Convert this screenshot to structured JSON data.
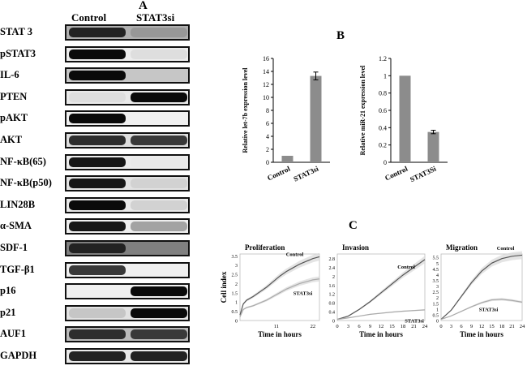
{
  "panel_A": {
    "letter": "A",
    "columns": [
      "Control",
      "STAT3si"
    ],
    "blots": [
      {
        "label": "STAT 3",
        "control": 0.9,
        "stat3si": 0.4,
        "bg": 0.3
      },
      {
        "label": "pSTAT3",
        "control": 1.0,
        "stat3si": 0.1,
        "bg": 0.04
      },
      {
        "label": "IL-6",
        "control": 1.0,
        "stat3si": 0.1,
        "bg": 0.2
      },
      {
        "label": "PTEN",
        "control": 0.1,
        "stat3si": 1.0,
        "bg": 0.05
      },
      {
        "label": "pAKT",
        "control": 1.0,
        "stat3si": 0.0,
        "bg": 0.02
      },
      {
        "label": "AKT",
        "control": 0.85,
        "stat3si": 0.8,
        "bg": 0.1
      },
      {
        "label": "NF-κB(65)",
        "control": 0.95,
        "stat3si": 0.05,
        "bg": 0.04
      },
      {
        "label": "NF-κB(p50)",
        "control": 0.95,
        "stat3si": 0.15,
        "bg": 0.08
      },
      {
        "label": "LIN28B",
        "control": 1.0,
        "stat3si": 0.15,
        "bg": 0.05
      },
      {
        "label": "α-SMA",
        "control": 0.95,
        "stat3si": 0.35,
        "bg": 0.03
      },
      {
        "label": "SDF-1",
        "control": 0.9,
        "stat3si": 0.1,
        "bg": 0.5
      },
      {
        "label": "TGF-β1",
        "control": 0.8,
        "stat3si": 0.0,
        "bg": 0.02
      },
      {
        "label": "p16",
        "control": 0.0,
        "stat3si": 1.0,
        "bg": 0.02
      },
      {
        "label": "p21",
        "control": 0.2,
        "stat3si": 1.0,
        "bg": 0.08
      },
      {
        "label": "AUF1",
        "control": 0.85,
        "stat3si": 0.8,
        "bg": 0.25
      },
      {
        "label": "GAPDH",
        "control": 0.9,
        "stat3si": 0.9,
        "bg": 0.05
      }
    ]
  },
  "panel_B": {
    "letter": "B"
  },
  "panel_C": {
    "letter": "C"
  },
  "chart_data": [
    {
      "type": "bar",
      "panel": "B",
      "categories": [
        "Control",
        "STAT3si"
      ],
      "values": [
        1,
        13.3
      ],
      "errors": [
        0,
        0.6
      ],
      "ylabel": "Relative let-7b expression level",
      "ylim": [
        0,
        16
      ],
      "yticks": [
        0,
        2,
        4,
        6,
        8,
        10,
        12,
        14,
        16
      ],
      "bar_color": "#8c8c8c",
      "grid": false
    },
    {
      "type": "bar",
      "panel": "B",
      "categories": [
        "Control",
        "STAT3Si"
      ],
      "values": [
        1,
        0.35
      ],
      "errors": [
        0,
        0.02
      ],
      "ylabel": "Relative miR-21 expression level",
      "ylim": [
        0,
        1.2
      ],
      "yticks": [
        "0",
        "0.2",
        "0.4",
        "0.6",
        "0.8",
        "1",
        "1.2"
      ],
      "bar_color": "#8c8c8c",
      "grid": false
    },
    {
      "type": "line",
      "panel": "C",
      "title": "Proliferation",
      "ylabel": "Cell index",
      "xlabel": "Time  in hours",
      "xticks": [
        11,
        22
      ],
      "xlim": [
        0,
        24
      ],
      "yticks": [
        "0",
        "0.5",
        "1",
        "1.5",
        "2",
        "2.5",
        "3",
        "3.5"
      ],
      "ylim": [
        0,
        3.6
      ],
      "series": [
        {
          "name": "Control",
          "x": [
            0,
            1,
            2,
            4,
            6,
            8,
            10,
            12,
            14,
            16,
            18,
            20,
            22,
            24
          ],
          "y": [
            0.3,
            0.9,
            1.1,
            1.3,
            1.55,
            1.8,
            2.1,
            2.4,
            2.65,
            2.85,
            3.05,
            3.2,
            3.35,
            3.45
          ]
        },
        {
          "name": "STAT3si",
          "x": [
            0,
            1,
            2,
            4,
            6,
            8,
            10,
            12,
            14,
            16,
            18,
            20,
            22,
            24
          ],
          "y": [
            0.2,
            0.6,
            0.7,
            0.8,
            0.95,
            1.1,
            1.3,
            1.5,
            1.7,
            1.85,
            2.0,
            2.1,
            2.2,
            2.25
          ]
        }
      ]
    },
    {
      "type": "line",
      "panel": "C",
      "title": "Invasion",
      "xlabel": "Time  in hours",
      "xticks": [
        0,
        3,
        6,
        9,
        12,
        15,
        18,
        21,
        24
      ],
      "xlim": [
        0,
        24
      ],
      "yticks": [
        "0",
        "0.4",
        "0.8",
        "1.2",
        "1.6",
        "2",
        "2.4",
        "2.8"
      ],
      "ylim": [
        0,
        3.0
      ],
      "series": [
        {
          "name": "Control",
          "x": [
            0,
            3,
            6,
            9,
            12,
            15,
            18,
            21,
            24
          ],
          "y": [
            0.05,
            0.2,
            0.5,
            0.85,
            1.25,
            1.65,
            2.05,
            2.4,
            2.75
          ]
        },
        {
          "name": "STAT3si",
          "x": [
            0,
            3,
            6,
            9,
            12,
            15,
            18,
            21,
            24
          ],
          "y": [
            0.05,
            0.12,
            0.2,
            0.28,
            0.33,
            0.38,
            0.42,
            0.45,
            0.48
          ]
        }
      ]
    },
    {
      "type": "line",
      "panel": "C",
      "title": "Migration",
      "xlabel": "Time  in hours",
      "xticks": [
        0,
        3,
        6,
        9,
        12,
        15,
        18,
        21,
        24
      ],
      "xlim": [
        0,
        24
      ],
      "yticks": [
        "0",
        "0.5",
        "1",
        "1.5",
        "2",
        "2.5",
        "3",
        "3.5",
        "4",
        "4.5",
        "5",
        "5.5"
      ],
      "ylim": [
        0,
        5.8
      ],
      "series": [
        {
          "name": "Control",
          "x": [
            0,
            3,
            6,
            9,
            12,
            15,
            18,
            21,
            24
          ],
          "y": [
            0.1,
            0.9,
            2.1,
            3.3,
            4.3,
            5.0,
            5.4,
            5.6,
            5.7
          ]
        },
        {
          "name": "STAT3si",
          "x": [
            0,
            3,
            6,
            9,
            12,
            15,
            18,
            21,
            24
          ],
          "y": [
            0.1,
            0.4,
            0.8,
            1.2,
            1.55,
            1.8,
            1.85,
            1.75,
            1.6
          ]
        }
      ]
    }
  ]
}
